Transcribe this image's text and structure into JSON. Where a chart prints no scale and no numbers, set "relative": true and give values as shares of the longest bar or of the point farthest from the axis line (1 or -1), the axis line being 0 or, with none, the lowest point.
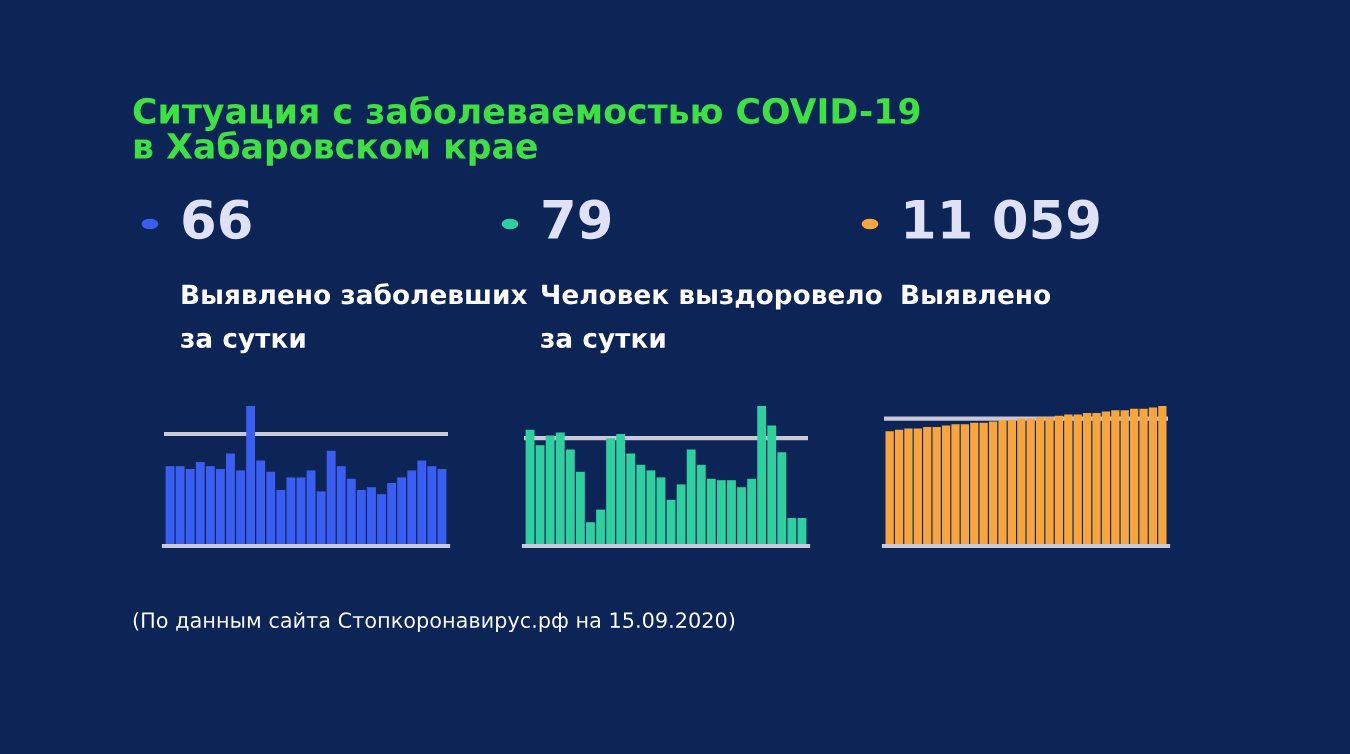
{
  "chart_data": [
    {
      "type": "other",
      "title": "Ситуация с заболеваемостью COVID-19\nв Хабаровском крае",
      "annotations": [
        "(По данным сайта Стопкоронавирус.рф на 15.09.2020)"
      ]
    },
    {
      "type": "bar",
      "title": "66",
      "subtitle": "Выявлено заболевших\nза сутки",
      "relative": true,
      "color": "#3b5ef2",
      "categories": [
        null,
        null,
        null,
        null,
        null,
        null,
        null,
        null,
        null,
        null,
        null,
        null,
        null,
        null,
        null,
        null,
        null,
        null,
        null,
        null,
        null,
        null,
        null,
        null,
        null,
        null,
        null,
        null
      ],
      "values": [
        0.57,
        0.57,
        0.55,
        0.6,
        0.57,
        0.55,
        0.66,
        0.54,
        1.0,
        0.61,
        0.53,
        0.4,
        0.49,
        0.49,
        0.54,
        0.39,
        0.68,
        0.57,
        0.48,
        0.4,
        0.42,
        0.37,
        0.45,
        0.49,
        0.54,
        0.61,
        0.57,
        0.55
      ],
      "ref_lines": [
        {
          "axis": "y",
          "value": 0.8,
          "color": "#c8c8d8"
        }
      ],
      "grid": false,
      "legend": false
    },
    {
      "type": "bar",
      "title": "79",
      "subtitle": "Человек выздоровело\nза сутки",
      "relative": true,
      "color": "#2fcf9f",
      "categories": [
        null,
        null,
        null,
        null,
        null,
        null,
        null,
        null,
        null,
        null,
        null,
        null,
        null,
        null,
        null,
        null,
        null,
        null,
        null,
        null,
        null,
        null,
        null,
        null,
        null,
        null,
        null,
        null
      ],
      "values": [
        0.83,
        0.72,
        0.79,
        0.81,
        0.69,
        0.53,
        0.17,
        0.26,
        0.77,
        0.8,
        0.66,
        0.58,
        0.54,
        0.49,
        0.33,
        0.44,
        0.69,
        0.58,
        0.48,
        0.47,
        0.47,
        0.42,
        0.48,
        1.0,
        0.86,
        0.67,
        0.2,
        0.2
      ],
      "ref_lines": [
        {
          "axis": "y",
          "value": 0.77,
          "color": "#c8c8d8"
        }
      ],
      "grid": false,
      "legend": false
    },
    {
      "type": "bar",
      "title": "11 059",
      "subtitle": "Выявлено",
      "relative": true,
      "color": "#f7a53e",
      "categories": [
        null,
        null,
        null,
        null,
        null,
        null,
        null,
        null,
        null,
        null,
        null,
        null,
        null,
        null,
        null,
        null,
        null,
        null,
        null,
        null,
        null,
        null,
        null,
        null,
        null,
        null,
        null,
        null,
        null,
        null
      ],
      "values": [
        0.82,
        0.83,
        0.84,
        0.84,
        0.85,
        0.85,
        0.86,
        0.87,
        0.87,
        0.88,
        0.88,
        0.89,
        0.9,
        0.9,
        0.91,
        0.91,
        0.92,
        0.92,
        0.93,
        0.94,
        0.94,
        0.95,
        0.95,
        0.96,
        0.97,
        0.97,
        0.98,
        0.98,
        0.99,
        1.0
      ],
      "ref_lines": [
        {
          "axis": "y",
          "value": 0.91,
          "color": "#c8c8d8"
        }
      ],
      "grid": false,
      "legend": false
    }
  ]
}
